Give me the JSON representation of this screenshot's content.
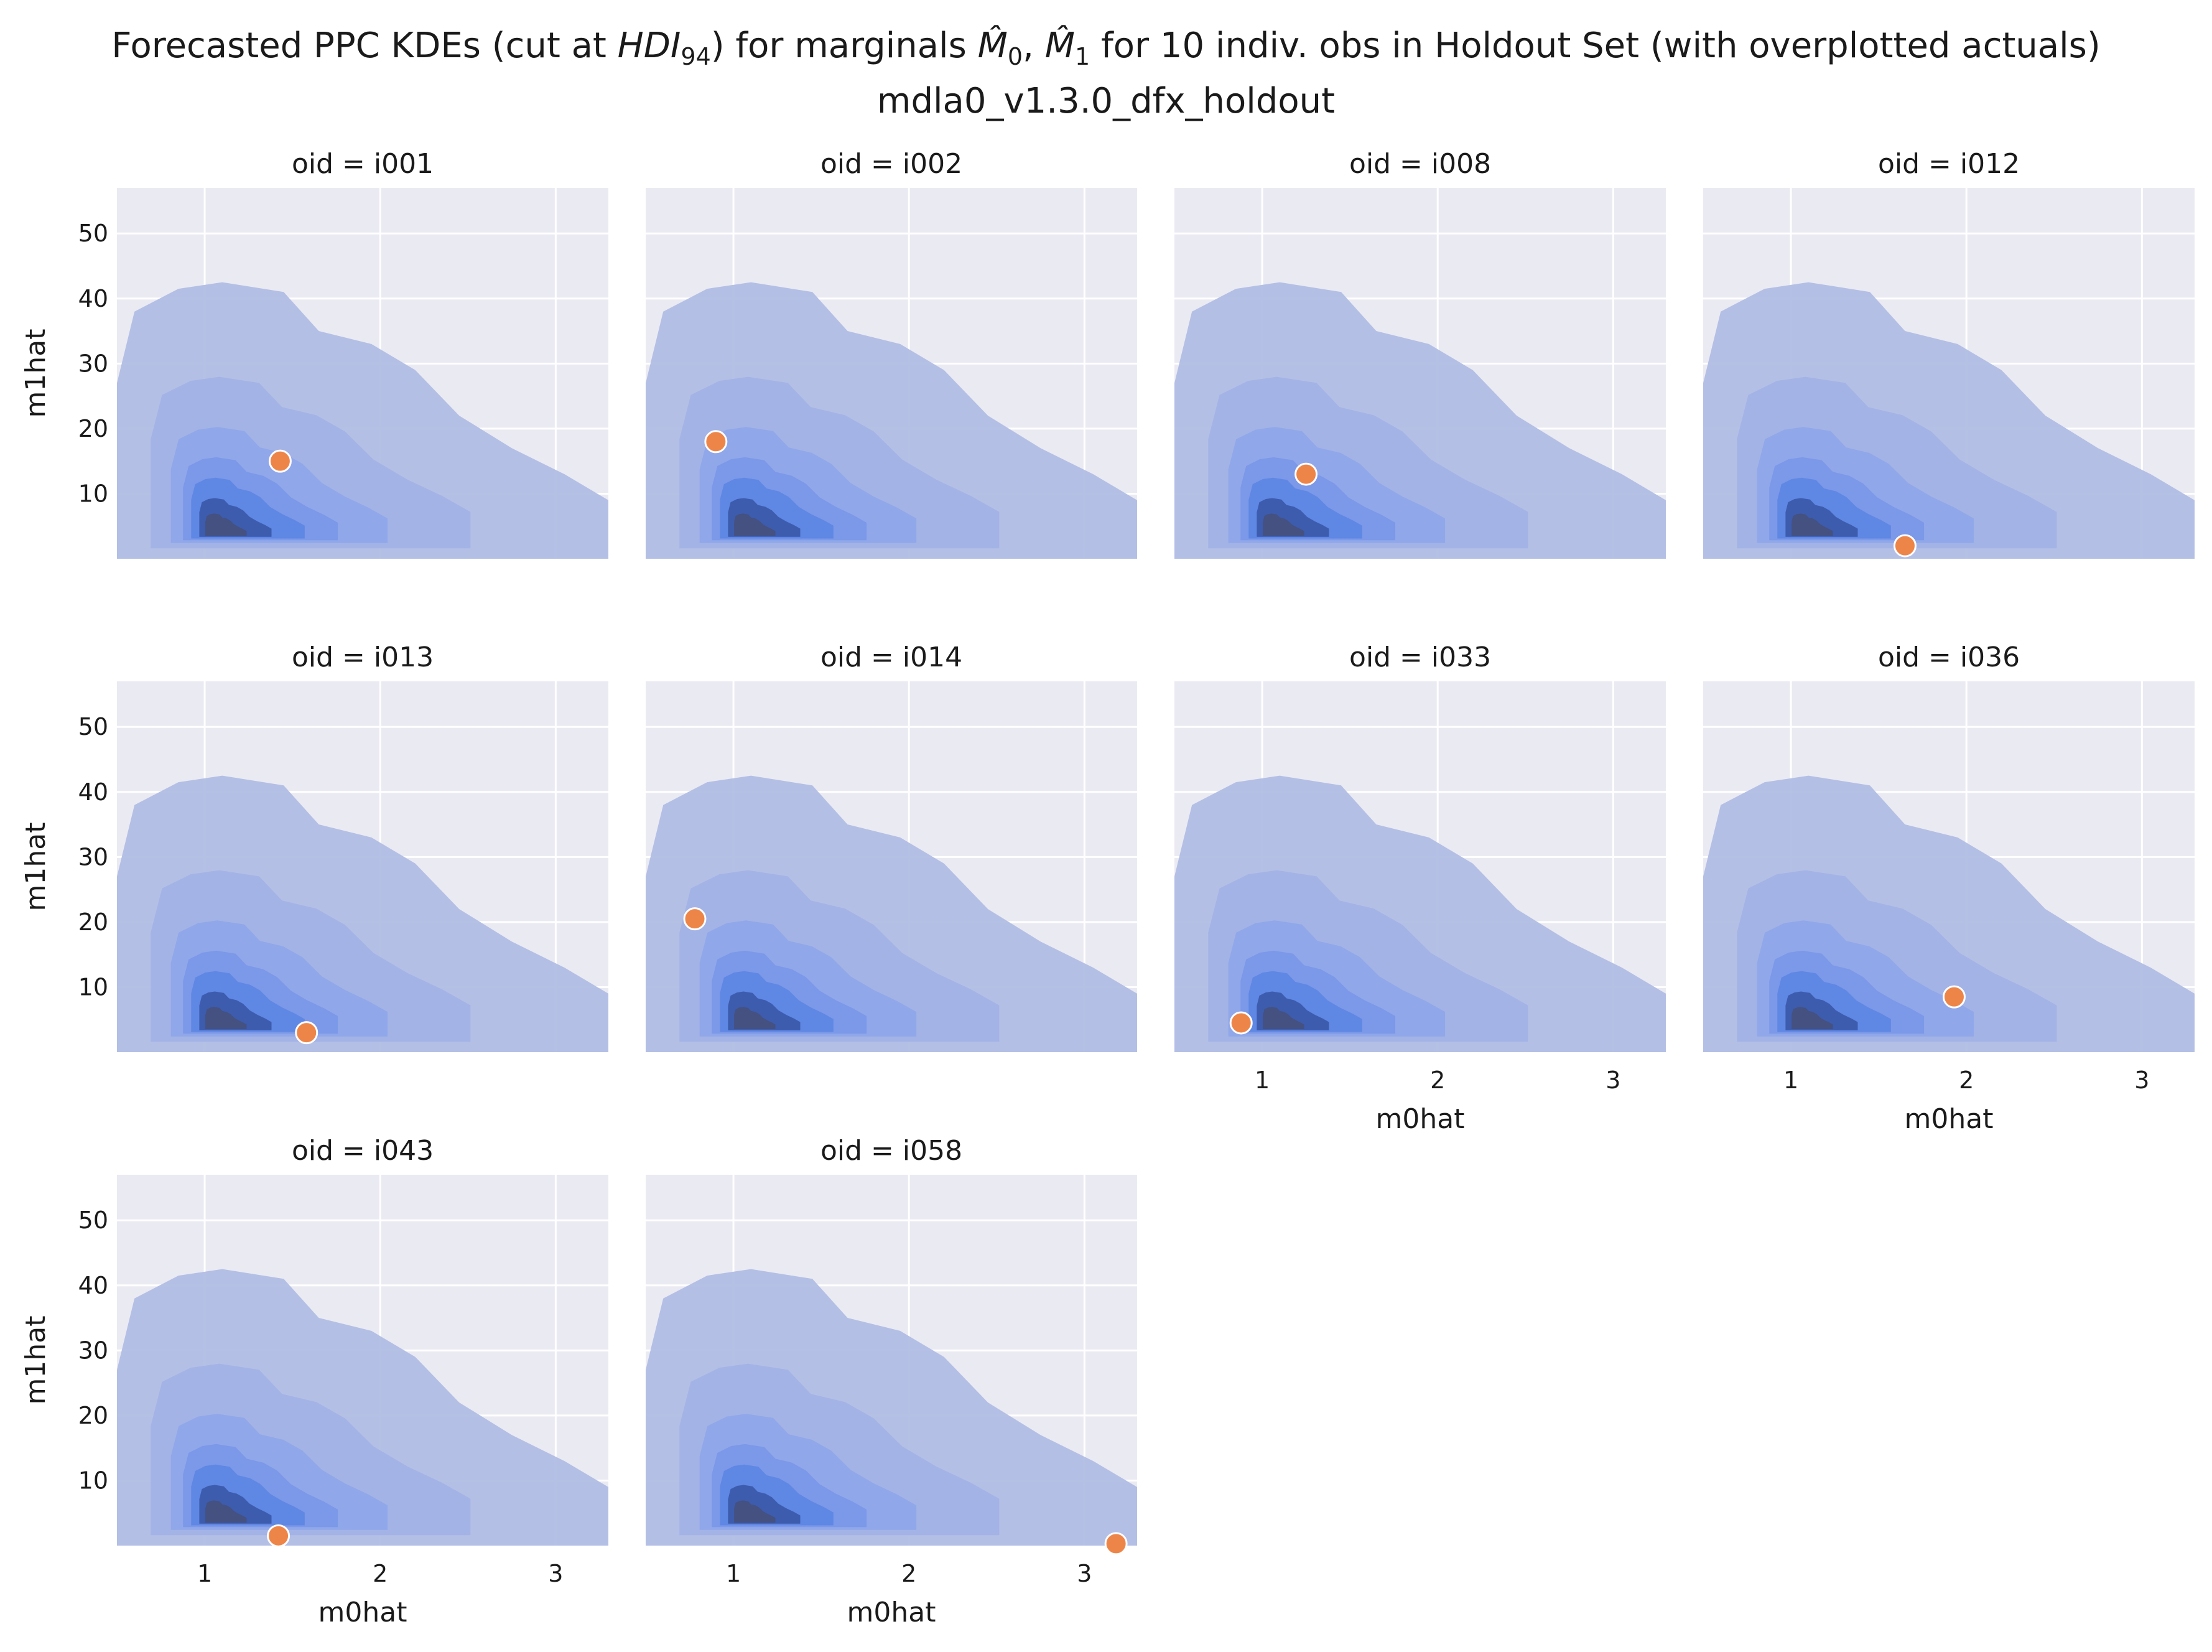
{
  "title": {
    "line1_pre": "Forecasted PPC KDEs (cut at ",
    "hdi_main": "HDI",
    "hdi_sub": "94",
    "line1_mid": ") for marginals ",
    "m0_main": "M̂",
    "m0_sub": "0",
    "comma": ", ",
    "m1_main": "M̂",
    "m1_sub": "1",
    "line1_post": " for 10 indiv. obs in Holdout Set (with overplotted actuals)",
    "line2": "mdla0_v1.3.0_dfx_holdout"
  },
  "colors": {
    "panel_bg": "#EAEAF2",
    "grid": "#FFFFFF",
    "kde_levels": [
      "#B1BDE4",
      "#A2B2E6",
      "#8FA6EA",
      "#7B97E8",
      "#5E86E4",
      "#3B5AAB",
      "#44507E"
    ],
    "actual_point": "#EE8548",
    "actual_edge": "#FFFFFF"
  },
  "chart_data": {
    "type": "scatter",
    "subtype": "faceted bivariate kde with overplotted actual points",
    "facet_var": "oid",
    "xlabel": "m0hat",
    "ylabel": "m1hat",
    "xlim": [
      0.5,
      3.3
    ],
    "ylim": [
      0,
      57
    ],
    "xticks": [
      1,
      2,
      3
    ],
    "yticks": [
      10,
      20,
      30,
      40,
      50
    ],
    "grid": true,
    "kde_cut": "HDI94",
    "facets": [
      {
        "title": "oid = i001",
        "actual": {
          "m0hat": 1.43,
          "m1hat": 15.0
        }
      },
      {
        "title": "oid = i002",
        "actual": {
          "m0hat": 0.9,
          "m1hat": 18.0
        }
      },
      {
        "title": "oid = i008",
        "actual": {
          "m0hat": 1.25,
          "m1hat": 13.0
        }
      },
      {
        "title": "oid = i012",
        "actual": {
          "m0hat": 1.65,
          "m1hat": 2.0
        }
      },
      {
        "title": "oid = i013",
        "actual": {
          "m0hat": 1.58,
          "m1hat": 3.0
        }
      },
      {
        "title": "oid = i014",
        "actual": {
          "m0hat": 0.78,
          "m1hat": 20.5
        }
      },
      {
        "title": "oid = i033",
        "actual": {
          "m0hat": 0.88,
          "m1hat": 4.5
        }
      },
      {
        "title": "oid = i036",
        "actual": {
          "m0hat": 1.93,
          "m1hat": 8.5
        }
      },
      {
        "title": "oid = i043",
        "actual": {
          "m0hat": 1.42,
          "m1hat": 1.5
        }
      },
      {
        "title": "oid = i058",
        "actual": {
          "m0hat": 3.18,
          "m1hat": 0.3
        }
      }
    ]
  }
}
